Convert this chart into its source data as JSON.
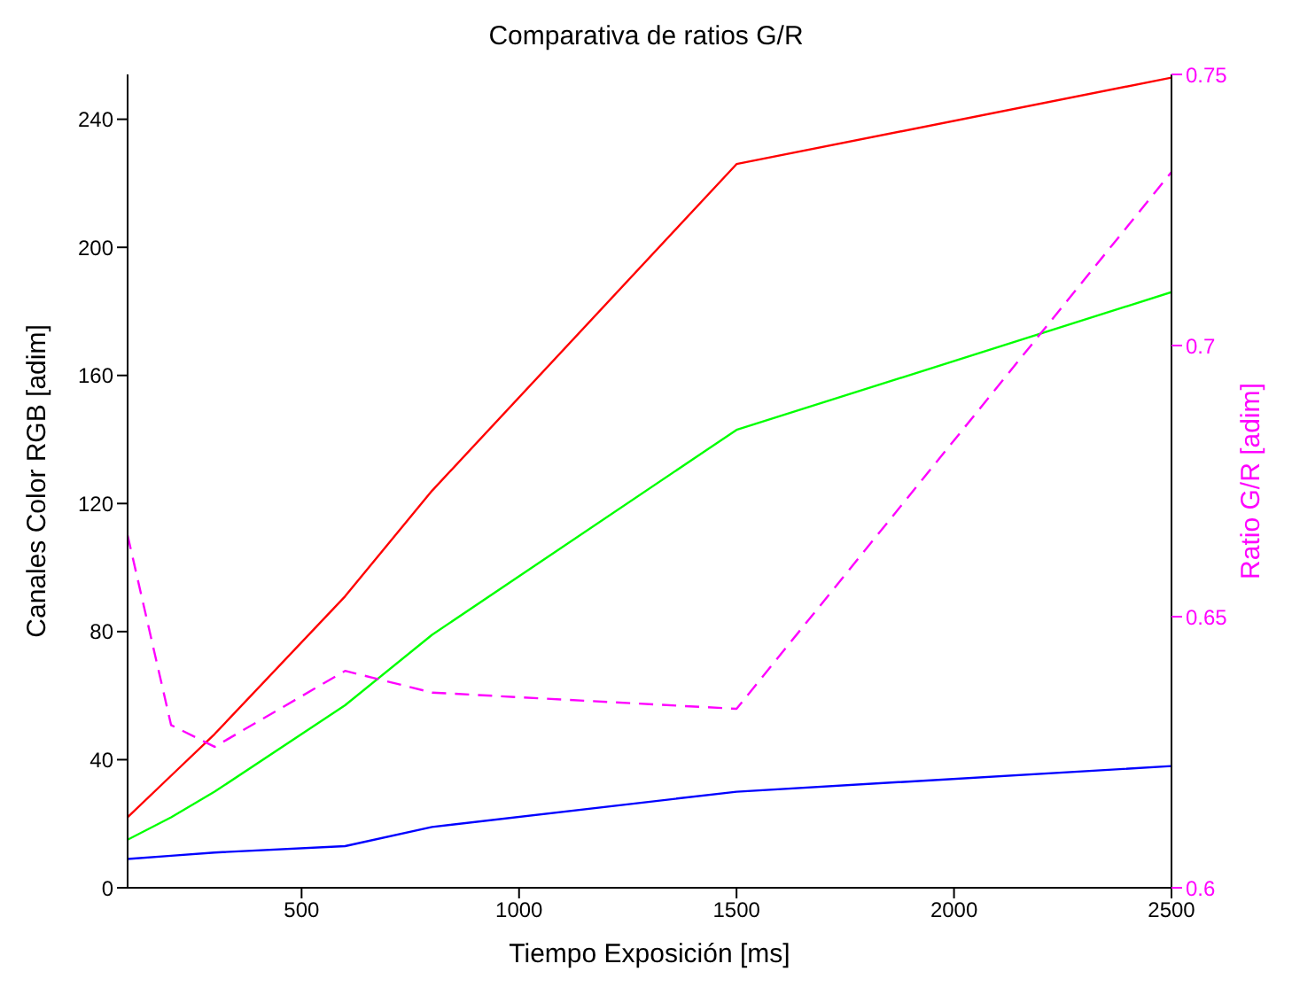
{
  "chart_data": {
    "type": "line",
    "title": "Comparativa de ratios G/R",
    "xlabel": "Tiempo Exposición [ms]",
    "ylabel": "Canales Color RGB [adim]",
    "y2label": "Ratio G/R [adim]",
    "x": [
      100,
      200,
      300,
      600,
      800,
      1500,
      2500
    ],
    "series": [
      {
        "color": "#ff0000",
        "values": [
          22,
          35,
          48,
          91,
          124,
          226,
          253
        ]
      },
      {
        "color": "#00ff00",
        "values": [
          15,
          22,
          30,
          57,
          79,
          143,
          186
        ]
      },
      {
        "color": "#0000ff",
        "values": [
          9,
          10,
          11,
          13,
          19,
          30,
          38
        ]
      },
      {
        "color": "#ff00ff",
        "values": [
          0.665,
          0.63,
          0.626,
          0.64,
          0.636,
          0.633,
          0.732
        ],
        "axis": "y2",
        "line_style": "dashed"
      }
    ],
    "xlim": [
      100,
      2500
    ],
    "xticks": [
      500,
      1000,
      1500,
      2000,
      2500
    ],
    "ylim": [
      0,
      254
    ],
    "yticks": [
      0,
      40,
      80,
      120,
      160,
      200,
      240
    ],
    "y2lim": [
      0.6,
      0.75
    ],
    "y2ticks": [
      0.6,
      0.65,
      0.7,
      0.75
    ],
    "grid": false,
    "legend": false,
    "marker": "none"
  }
}
